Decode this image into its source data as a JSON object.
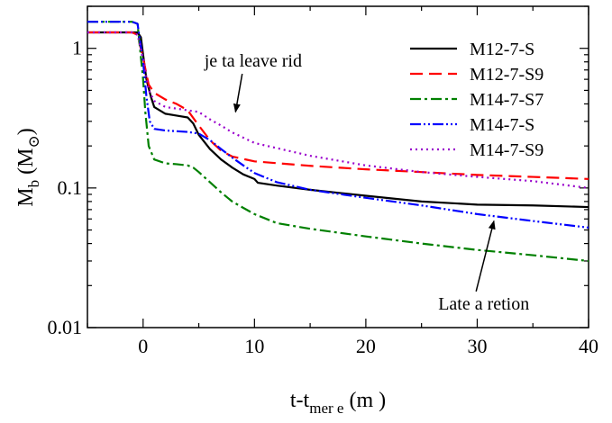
{
  "chart_data": {
    "type": "line",
    "xlabel": "t-t",
    "xlabel_sub": "mer e",
    "xlabel_unit": "(m  )",
    "ylabel": "M",
    "ylabel_sub": "b",
    "ylabel_unit_open": "(M",
    "ylabel_unit_sub": "⊙",
    "ylabel_unit_close": ")",
    "xlim": [
      -5,
      40
    ],
    "ylim": [
      0.01,
      2
    ],
    "y_scale": "log",
    "grid": false,
    "legend_position": "top-right",
    "x_ticks": [
      {
        "value": 0,
        "label": "0"
      },
      {
        "value": 10,
        "label": "10"
      },
      {
        "value": 20,
        "label": "20"
      },
      {
        "value": 30,
        "label": "30"
      },
      {
        "value": 40,
        "label": "40"
      }
    ],
    "y_ticks": [
      {
        "value": 0.01,
        "label": "0.01"
      },
      {
        "value": 0.1,
        "label": "0.1"
      },
      {
        "value": 1,
        "label": "1"
      }
    ],
    "series": [
      {
        "name": "M12-7-S",
        "color": "#000000",
        "dash": "",
        "x": [
          -5,
          -0.5,
          -0.2,
          0,
          0.3,
          0.7,
          1,
          2,
          3,
          4,
          4.5,
          5,
          6,
          7,
          8,
          9,
          10,
          10.3,
          12,
          15,
          20,
          25,
          30,
          35,
          40
        ],
        "y": [
          1.3,
          1.3,
          1.2,
          0.9,
          0.6,
          0.45,
          0.38,
          0.34,
          0.33,
          0.32,
          0.29,
          0.24,
          0.19,
          0.16,
          0.14,
          0.125,
          0.116,
          0.109,
          0.104,
          0.097,
          0.088,
          0.08,
          0.076,
          0.075,
          0.073
        ]
      },
      {
        "name": "M12-7-S9",
        "color": "#ff0000",
        "dash": "14,7",
        "x": [
          -5,
          -1,
          -0.5,
          0,
          0.5,
          1,
          2,
          3,
          4,
          5,
          6,
          7,
          8,
          10,
          15,
          20,
          25,
          30,
          35,
          40
        ],
        "y": [
          1.3,
          1.3,
          1.25,
          0.85,
          0.55,
          0.48,
          0.43,
          0.4,
          0.36,
          0.28,
          0.22,
          0.185,
          0.168,
          0.155,
          0.144,
          0.136,
          0.13,
          0.124,
          0.12,
          0.116
        ]
      },
      {
        "name": "M14-7-S7",
        "color": "#008000",
        "dash": "12,4,3,4",
        "x": [
          -5,
          -1,
          -0.5,
          0,
          0.2,
          0.5,
          1,
          2,
          3,
          4,
          4.5,
          5,
          6,
          7,
          8,
          9,
          10,
          12,
          15,
          20,
          25,
          30,
          35,
          40
        ],
        "y": [
          1.55,
          1.55,
          1.5,
          0.6,
          0.35,
          0.2,
          0.16,
          0.15,
          0.148,
          0.145,
          0.14,
          0.13,
          0.11,
          0.093,
          0.08,
          0.072,
          0.065,
          0.056,
          0.051,
          0.045,
          0.04,
          0.036,
          0.033,
          0.03
        ]
      },
      {
        "name": "M14-7-S",
        "color": "#0000ff",
        "dash": "12,3,2,3,2,3",
        "x": [
          -5,
          -1,
          -0.5,
          0,
          0.3,
          0.6,
          1,
          2,
          3,
          4,
          5,
          6,
          7,
          8,
          9,
          10,
          12,
          15,
          20,
          25,
          30,
          35,
          40
        ],
        "y": [
          1.55,
          1.55,
          1.5,
          0.8,
          0.45,
          0.3,
          0.265,
          0.258,
          0.255,
          0.252,
          0.245,
          0.22,
          0.19,
          0.165,
          0.145,
          0.128,
          0.11,
          0.097,
          0.085,
          0.075,
          0.065,
          0.058,
          0.052
        ]
      },
      {
        "name": "M14-7-S9",
        "color": "#9900cc",
        "dash": "2,4",
        "x": [
          -5,
          -1,
          -0.5,
          0,
          0.5,
          1,
          2,
          3,
          4,
          5,
          6,
          7,
          8,
          10,
          15,
          20,
          25,
          30,
          35,
          40
        ],
        "y": [
          1.3,
          1.3,
          1.25,
          0.85,
          0.5,
          0.42,
          0.38,
          0.37,
          0.36,
          0.35,
          0.31,
          0.28,
          0.25,
          0.21,
          0.17,
          0.145,
          0.13,
          0.12,
          0.112,
          0.1
        ]
      }
    ],
    "annotations": [
      {
        "text": "je  ta leave     rid",
        "at": [
          8.3,
          0.35
        ],
        "label_at": [
          5.5,
          0.74
        ]
      },
      {
        "text": "Late a     retion",
        "at": [
          31.5,
          0.058
        ],
        "label_at": [
          26.5,
          0.0135
        ]
      }
    ]
  }
}
